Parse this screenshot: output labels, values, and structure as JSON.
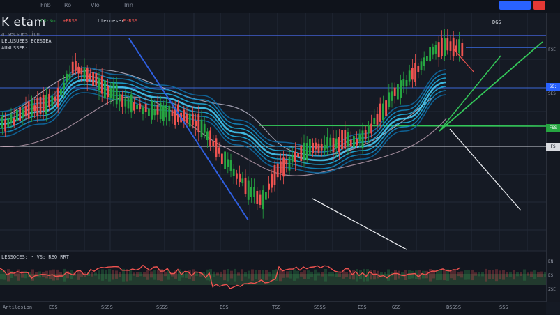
{
  "header": {
    "menu": [
      "Fnb",
      "Ro",
      "Vlo",
      "Irin"
    ],
    "blue_button": "",
    "red_button": ""
  },
  "symbol": {
    "ticker": "K etam",
    "line1_a": "LS:Nuc",
    "line1_b": "+ERSS",
    "line1_c": "Lteroeser",
    "line1_d": "E:RSS",
    "line2": "a:secsnestion",
    "line3": "LELUSUEES ECESIEA",
    "line4": "AUNLSSER:"
  },
  "chart_stamp": "DGS",
  "indicator_label": "LESSOCES: · VS: REO  RRT",
  "price_tags": [
    {
      "label": "SG:",
      "color": "#2962ff"
    },
    {
      "label": "FSS",
      "color": "#26a641"
    },
    {
      "label": "FS",
      "color": "#d9dbe0"
    }
  ],
  "price_texts": [
    "FSE",
    "SES",
    "EN",
    "ES",
    "ZSE"
  ],
  "time_labels": [
    "Antilosion",
    "ESS",
    "SSSS",
    "SSSS",
    "ESS",
    "TSS",
    "SSSS",
    "ESS",
    "GSS",
    "BSSSS",
    "SSS"
  ],
  "colors": {
    "up": "#26a641",
    "down": "#ef5350",
    "ribbon": "#1fb6e8",
    "trend_blue": "#2f5fe0",
    "trend_green": "#34c759"
  }
}
